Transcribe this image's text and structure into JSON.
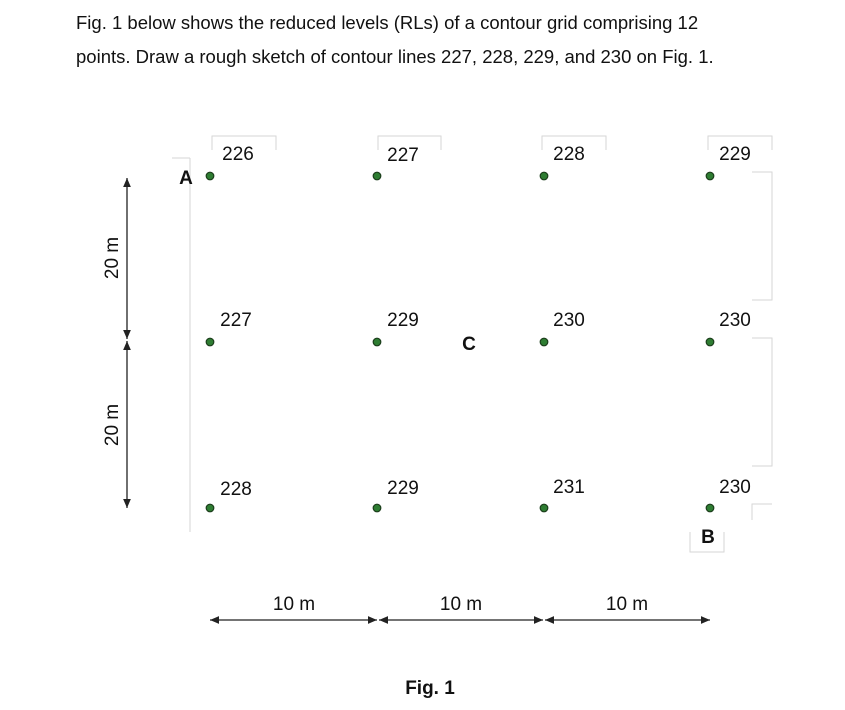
{
  "question": {
    "line1": "Fig. 1 below shows the reduced levels (RLs) of a contour grid comprising 12",
    "line2": "points. Draw a rough sketch of contour lines 227, 228, 229, and 230 on Fig. 1."
  },
  "grid": {
    "rows": [
      [
        "226",
        "227",
        "228",
        "229"
      ],
      [
        "227",
        "229",
        "230",
        "230"
      ],
      [
        "228",
        "229",
        "231",
        "230"
      ]
    ]
  },
  "points": {
    "A": "A",
    "B": "B",
    "C": "C"
  },
  "dimensions": {
    "vertical": [
      "20 m",
      "20 m"
    ],
    "horizontal": [
      "10 m",
      "10 m",
      "10 m"
    ]
  },
  "caption": "Fig. 1",
  "colors": {
    "dot_fill": "#2e7d32",
    "dot_stroke": "#1b3d1b",
    "line": "#222222",
    "faint": "#d6d6d6"
  }
}
